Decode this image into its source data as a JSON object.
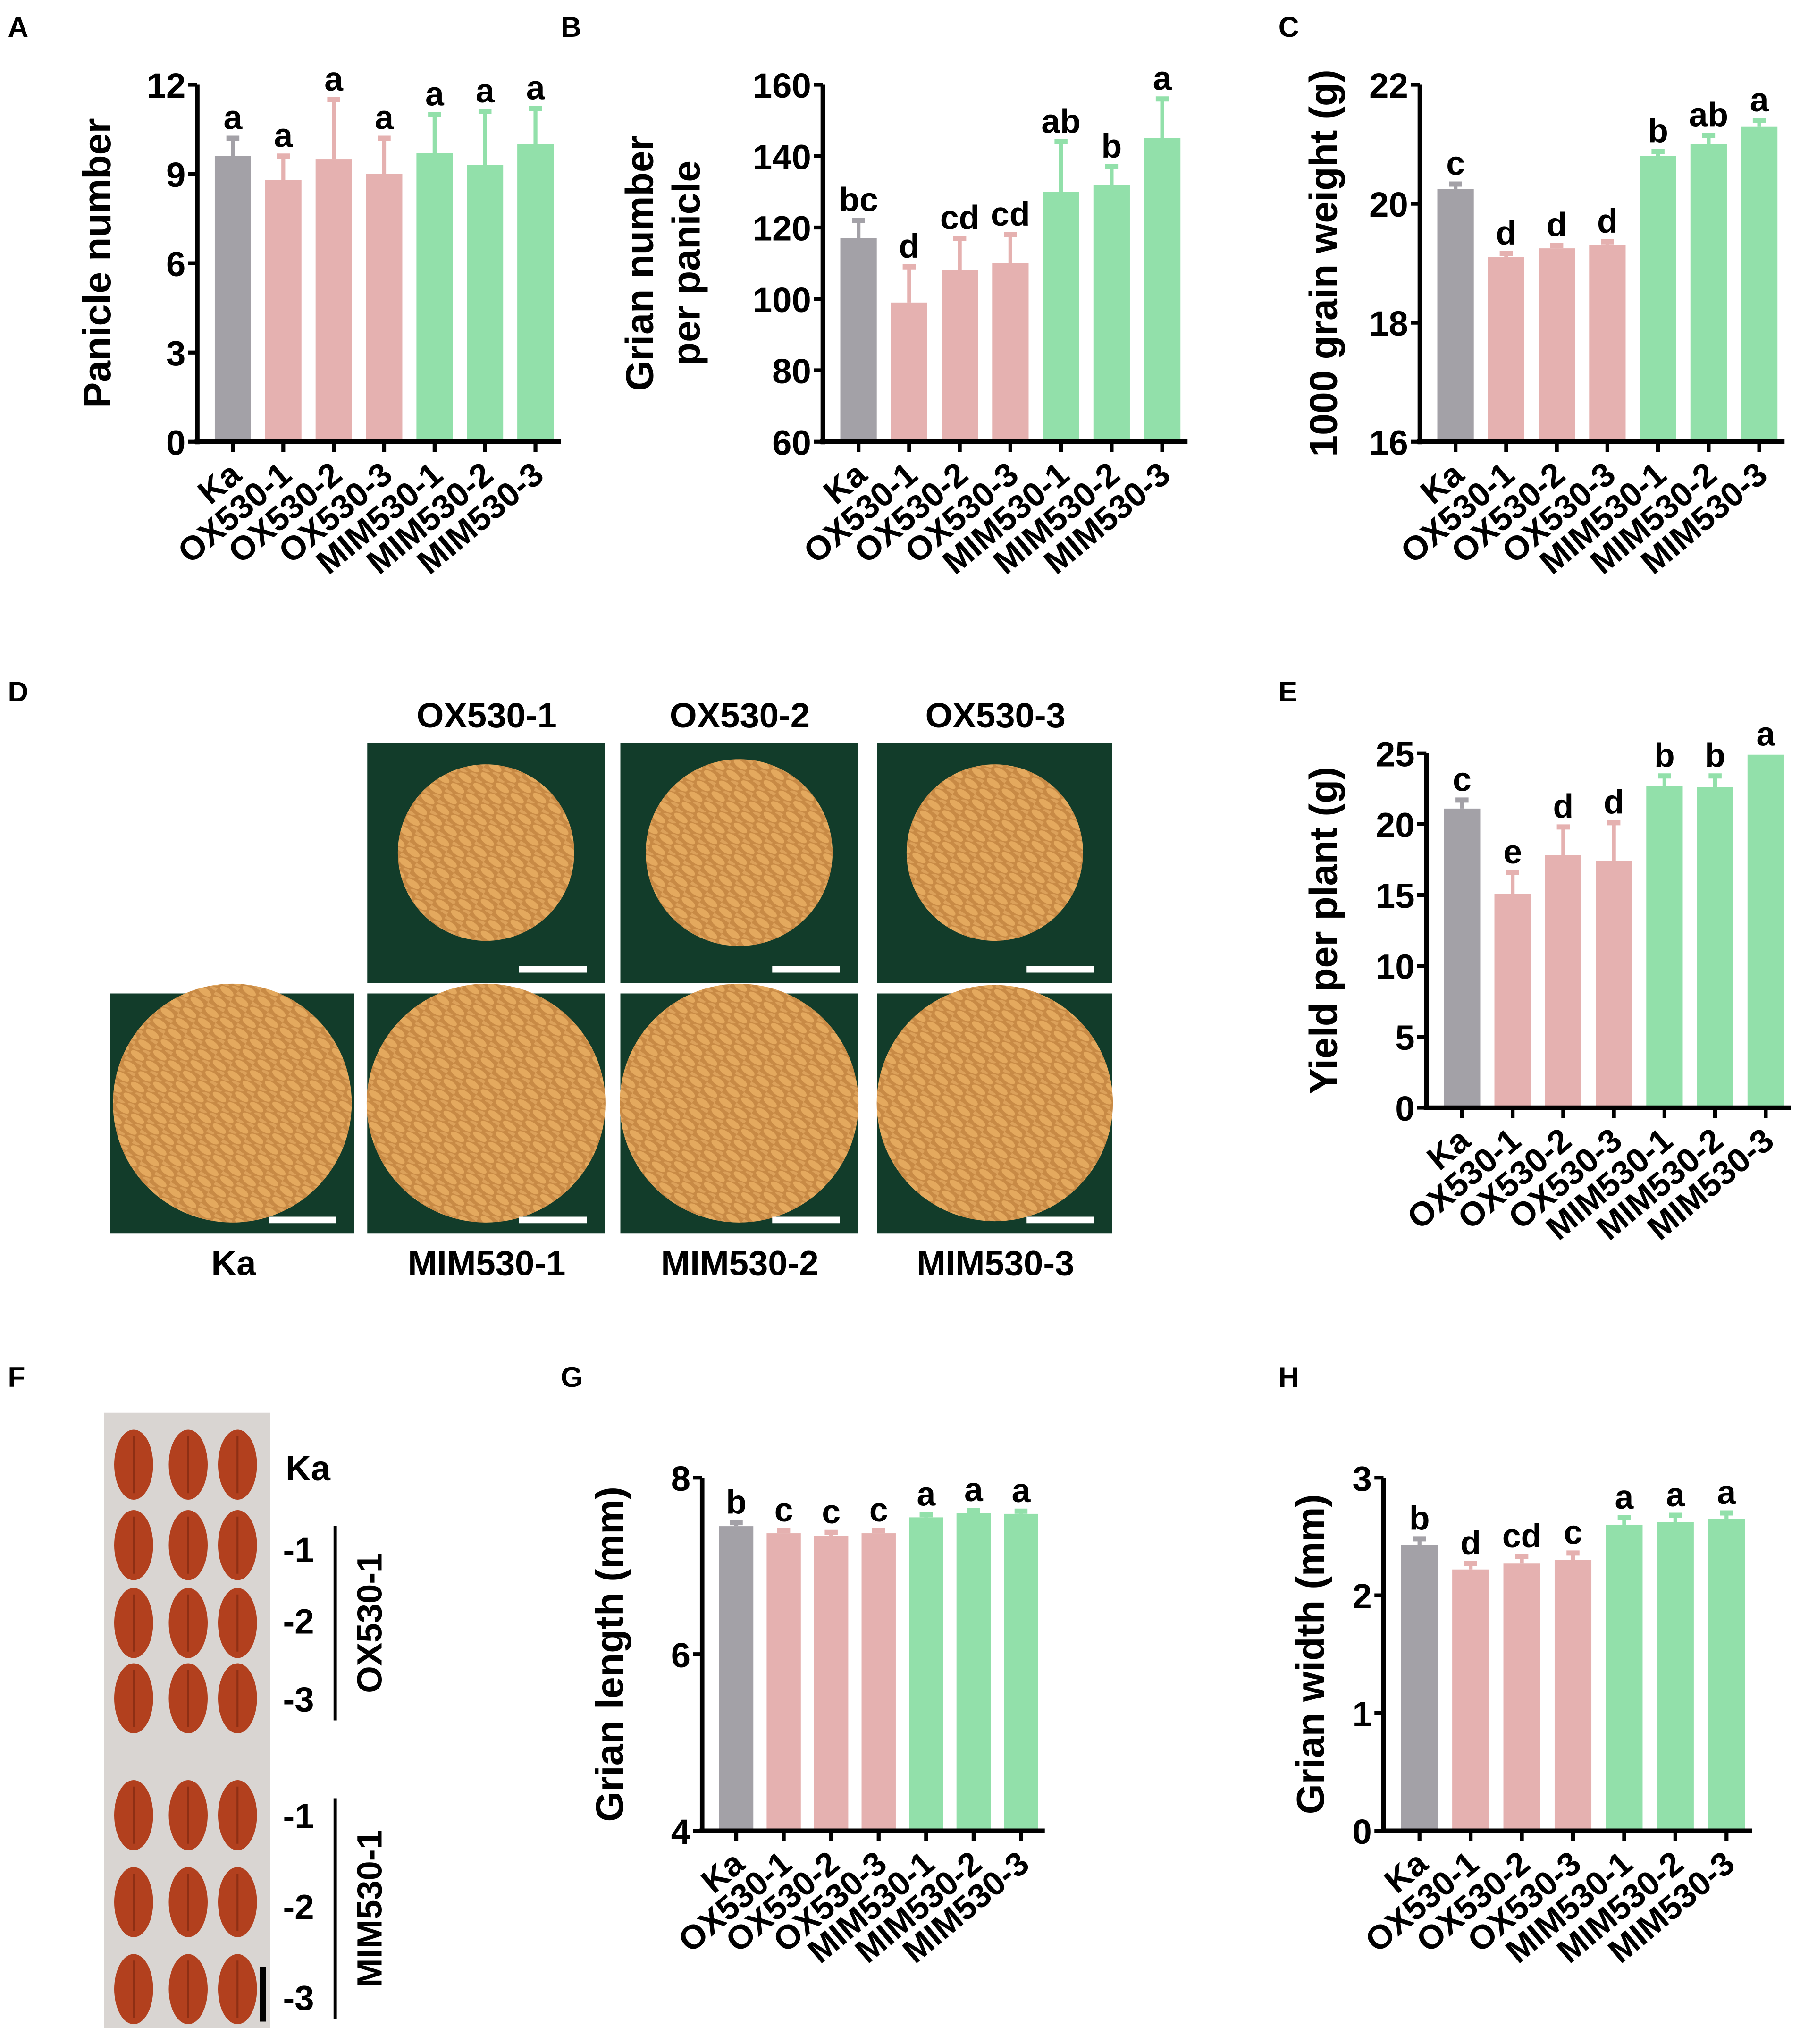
{
  "panel_letters": [
    "A",
    "B",
    "C",
    "D",
    "E",
    "F",
    "G",
    "H"
  ],
  "colors": {
    "wildtype": "#a3a1a7",
    "overexpression": "#e5b1b0",
    "mimic": "#92e0aa",
    "axis": "#000000",
    "image_bg": "#123c2a",
    "grain": "#d89a52",
    "seed": "#b2401e",
    "seed_bg": "#d9d5d2"
  },
  "panel_d": {
    "top_labels": [
      "OX530-1",
      "OX530-2",
      "OX530-3"
    ],
    "bottom_labels": [
      "Ka",
      "MIM530-1",
      "MIM530-2",
      "MIM530-3"
    ]
  },
  "panel_f": {
    "labels": [
      "Ka",
      "-1",
      "-2",
      "-3",
      "-1",
      "-2",
      "-3"
    ],
    "group_labels": [
      "OX530-1",
      "MIM530-1"
    ]
  },
  "chart_data": [
    {
      "id": "A",
      "type": "bar",
      "title": "",
      "ylabel": "Panicle number",
      "xlabel": "",
      "ylim": [
        0,
        12
      ],
      "yticks": [
        0,
        3,
        6,
        9,
        12
      ],
      "categories": [
        "Ka",
        "OX530-1",
        "OX530-2",
        "OX530-3",
        "MIM530-1",
        "MIM530-2",
        "MIM530-3"
      ],
      "values": [
        9.6,
        8.8,
        9.5,
        9.0,
        9.7,
        9.3,
        10.0
      ],
      "errors": [
        0.6,
        0.8,
        2.0,
        1.2,
        1.3,
        1.8,
        1.2
      ],
      "significance": [
        "a",
        "a",
        "a",
        "a",
        "a",
        "a",
        "a"
      ]
    },
    {
      "id": "B",
      "type": "bar",
      "title": "",
      "ylabel": "Grian number per panicle",
      "ylabel_lines": [
        "Grian number",
        "per panicle"
      ],
      "xlabel": "",
      "ylim": [
        60,
        160
      ],
      "yticks": [
        60,
        80,
        100,
        120,
        140,
        160
      ],
      "categories": [
        "Ka",
        "OX530-1",
        "OX530-2",
        "OX530-3",
        "MIM530-1",
        "MIM530-2",
        "MIM530-3"
      ],
      "values": [
        117,
        99,
        108,
        110,
        130,
        132,
        145
      ],
      "errors": [
        5,
        10,
        9,
        8,
        14,
        5,
        11
      ],
      "significance": [
        "bc",
        "d",
        "cd",
        "cd",
        "ab",
        "b",
        "a"
      ]
    },
    {
      "id": "C",
      "type": "bar",
      "title": "",
      "ylabel": "1000  grain weight (g)",
      "xlabel": "",
      "ylim": [
        16,
        22
      ],
      "yticks": [
        16,
        18,
        20,
        22
      ],
      "categories": [
        "Ka",
        "OX530-1",
        "OX530-2",
        "OX530-3",
        "MIM530-1",
        "MIM530-2",
        "MIM530-3"
      ],
      "values": [
        20.25,
        19.1,
        19.25,
        19.3,
        20.8,
        21.0,
        21.3
      ],
      "errors": [
        0.08,
        0.06,
        0.05,
        0.06,
        0.08,
        0.15,
        0.1
      ],
      "significance": [
        "c",
        "d",
        "d",
        "d",
        "b",
        "ab",
        "a"
      ]
    },
    {
      "id": "E",
      "type": "bar",
      "title": "",
      "ylabel": "Yield per plant (g)",
      "xlabel": "",
      "ylim": [
        0,
        25
      ],
      "yticks": [
        0,
        5,
        10,
        15,
        20,
        25
      ],
      "categories": [
        "Ka",
        "OX530-1",
        "OX530-2",
        "OX530-3",
        "MIM530-1",
        "MIM530-2",
        "MIM530-3"
      ],
      "values": [
        21.1,
        15.1,
        17.8,
        17.4,
        22.7,
        22.6,
        24.9
      ],
      "errors": [
        0.6,
        1.5,
        2.0,
        2.7,
        0.7,
        0.8,
        0
      ],
      "significance": [
        "c",
        "e",
        "d",
        "d",
        "b",
        "b",
        "a"
      ]
    },
    {
      "id": "G",
      "type": "bar",
      "title": "",
      "ylabel": "Grian length (mm)",
      "xlabel": "",
      "ylim": [
        4,
        8
      ],
      "yticks": [
        4,
        6,
        8
      ],
      "categories": [
        "Ka",
        "OX530-1",
        "OX530-2",
        "OX530-3",
        "MIM530-1",
        "MIM530-2",
        "MIM530-3"
      ],
      "values": [
        7.45,
        7.37,
        7.34,
        7.37,
        7.55,
        7.6,
        7.59
      ],
      "errors": [
        0.04,
        0.03,
        0.04,
        0.03,
        0.03,
        0.03,
        0.03
      ],
      "significance": [
        "b",
        "c",
        "c",
        "c",
        "a",
        "a",
        "a"
      ]
    },
    {
      "id": "H",
      "type": "bar",
      "title": "",
      "ylabel": "Grian width (mm)",
      "xlabel": "",
      "ylim": [
        0,
        3
      ],
      "yticks": [
        0,
        1,
        2,
        3
      ],
      "categories": [
        "Ka",
        "OX530-1",
        "OX530-2",
        "OX530-3",
        "MIM530-1",
        "MIM530-2",
        "MIM530-3"
      ],
      "values": [
        2.43,
        2.22,
        2.27,
        2.3,
        2.6,
        2.62,
        2.65
      ],
      "errors": [
        0.05,
        0.05,
        0.06,
        0.06,
        0.06,
        0.06,
        0.05
      ],
      "significance": [
        "b",
        "d",
        "cd",
        "c",
        "a",
        "a",
        "a"
      ]
    }
  ]
}
